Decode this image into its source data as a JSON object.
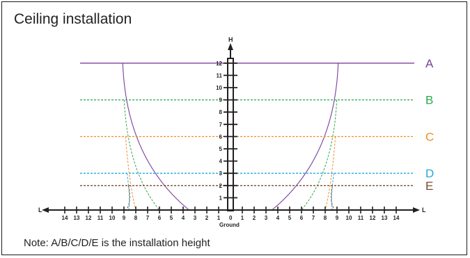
{
  "title": "Ceiling installation",
  "note": "Note: A/B/C/D/E is the installation height",
  "axes": {
    "vertical_label": "H",
    "horizontal_label_left": "L",
    "horizontal_label_right": "L",
    "ground_label": "Ground",
    "origin_label": "0",
    "h_ticks": [
      "1",
      "2",
      "3",
      "4",
      "5",
      "6",
      "7",
      "8",
      "9",
      "10",
      "11",
      "12"
    ],
    "l_ticks": [
      "1",
      "2",
      "3",
      "4",
      "5",
      "6",
      "7",
      "8",
      "9",
      "10",
      "11",
      "12",
      "13",
      "14"
    ]
  },
  "levels": [
    {
      "name": "A",
      "height": 12,
      "color": "#7b3f9e",
      "style": "solid",
      "ground_reach": 3.5
    },
    {
      "name": "B",
      "height": 9,
      "color": "#2aa84a",
      "style": "dashed",
      "ground_reach": 6.0
    },
    {
      "name": "C",
      "height": 6,
      "color": "#f28c28",
      "style": "dashed",
      "ground_reach": 8.0
    },
    {
      "name": "D",
      "height": 3,
      "color": "#22a9df",
      "style": "dashed",
      "ground_reach": 8.6
    },
    {
      "name": "E",
      "height": 2,
      "color": "#7a4a2a",
      "style": "dashed",
      "ground_reach": 8.8
    }
  ]
}
